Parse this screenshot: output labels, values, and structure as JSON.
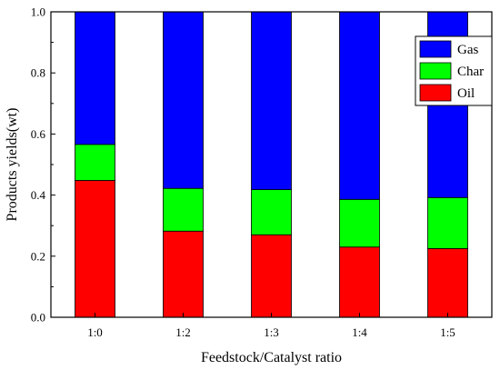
{
  "chart_data": {
    "type": "bar",
    "stacked": true,
    "categories": [
      "1:0",
      "1:2",
      "1:3",
      "1:4",
      "1:5"
    ],
    "series": [
      {
        "name": "Oil",
        "color": "#ff0000",
        "values": [
          0.448,
          0.282,
          0.27,
          0.23,
          0.225
        ]
      },
      {
        "name": "Char",
        "color": "#00ff00",
        "values": [
          0.118,
          0.14,
          0.148,
          0.156,
          0.167
        ]
      },
      {
        "name": "Gas",
        "color": "#0000ff",
        "values": [
          0.434,
          0.578,
          0.582,
          0.614,
          0.608
        ]
      }
    ],
    "title": "",
    "xlabel": "Feedstock/Catalyst ratio",
    "ylabel": "Products yields(wt)",
    "ylim": [
      0,
      1.0
    ],
    "yticks": [
      "0.0",
      "0.2",
      "0.4",
      "0.6",
      "0.8",
      "1.0"
    ],
    "grid": false,
    "legend_position": "top-right",
    "legend_order": [
      "Gas",
      "Char",
      "Oil"
    ]
  }
}
